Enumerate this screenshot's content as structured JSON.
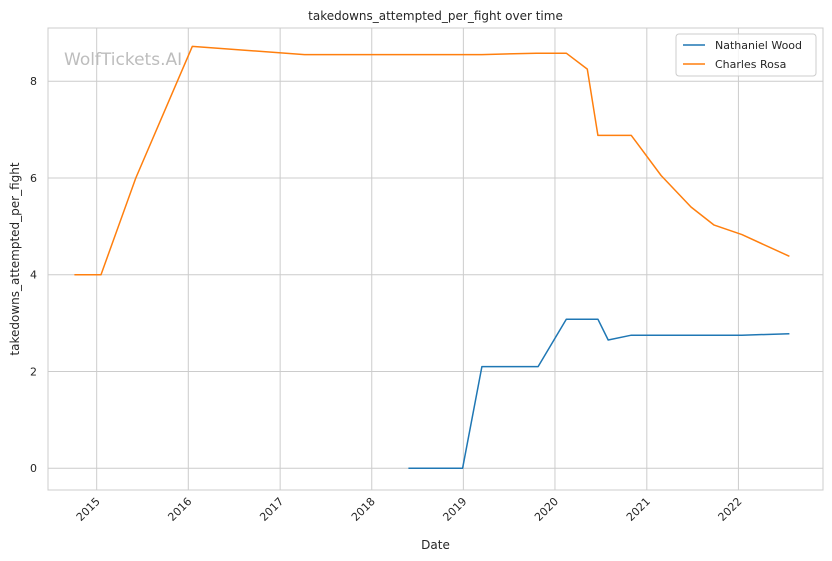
{
  "chart_data": {
    "type": "line",
    "title": "takedowns_attempted_per_fight over time",
    "xlabel": "Date",
    "ylabel": "takedowns_attempted_per_fight",
    "watermark": "WolfTickets.AI",
    "x_ticks": [
      "2015",
      "2016",
      "2017",
      "2018",
      "2019",
      "2020",
      "2021",
      "2022"
    ],
    "y_ticks": [
      "0",
      "2",
      "4",
      "6",
      "8"
    ],
    "xlim": [
      "2014-06-21",
      "2022-12-04"
    ],
    "ylim": [
      -0.45,
      9.1
    ],
    "grid": true,
    "legend_position": "top-right",
    "series": [
      {
        "name": "Nathaniel Wood",
        "color": "#1f77b4",
        "points": [
          [
            "2018-05-27",
            0.0
          ],
          [
            "2018-12-29",
            0.0
          ],
          [
            "2019-03-16",
            2.1
          ],
          [
            "2019-10-26",
            2.1
          ],
          [
            "2020-02-15",
            3.08
          ],
          [
            "2020-06-20",
            3.08
          ],
          [
            "2020-07-31",
            2.65
          ],
          [
            "2020-10-31",
            2.75
          ],
          [
            "2022-01-15",
            2.75
          ],
          [
            "2022-07-23",
            2.78
          ]
        ]
      },
      {
        "name": "Charles Rosa",
        "color": "#ff7f0e",
        "points": [
          [
            "2014-10-04",
            4.0
          ],
          [
            "2015-01-18",
            4.0
          ],
          [
            "2015-06-06",
            6.0
          ],
          [
            "2016-01-17",
            8.72
          ],
          [
            "2017-04-08",
            8.55
          ],
          [
            "2019-03-16",
            8.55
          ],
          [
            "2019-10-19",
            8.58
          ],
          [
            "2020-02-15",
            8.58
          ],
          [
            "2020-05-09",
            8.25
          ],
          [
            "2020-06-20",
            6.88
          ],
          [
            "2020-10-31",
            6.88
          ],
          [
            "2021-02-27",
            6.05
          ],
          [
            "2021-06-26",
            5.4
          ],
          [
            "2021-09-25",
            5.03
          ],
          [
            "2022-01-15",
            4.83
          ],
          [
            "2022-07-23",
            4.38
          ]
        ]
      }
    ]
  }
}
